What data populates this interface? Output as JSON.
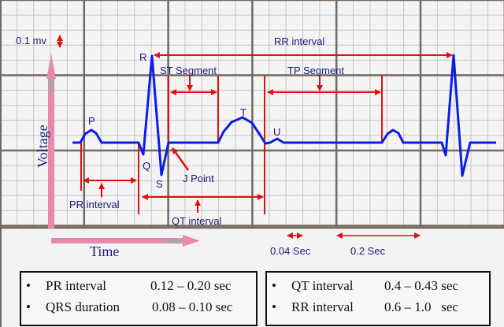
{
  "labels": {
    "voltage_scale": "0.1 mv",
    "voltage_axis": "Voltage",
    "time_axis": "Time",
    "wave_p": "P",
    "wave_q": "Q",
    "wave_r": "R",
    "wave_s": "S",
    "wave_t": "T",
    "wave_u": "U",
    "j_point": "J Point",
    "pr_interval": "PR interval",
    "qt_interval": "QT interval",
    "st_segment": "ST Segment",
    "tp_segment": "TP Segment",
    "rr_interval": "RR interval",
    "small_box_time": "0.04 Sec",
    "large_box_time": "0.2 Sec"
  },
  "normals": {
    "left": [
      {
        "bullet": "•",
        "name": "PR interval",
        "value": "0.12 – 0.20 sec"
      },
      {
        "bullet": "•",
        "name": "QRS duration",
        "value": "0.08 – 0.10 sec"
      }
    ],
    "right": [
      {
        "bullet": "•",
        "name": "QT interval",
        "value": "0.4 – 0.43 sec"
      },
      {
        "bullet": "•",
        "name": "RR interval",
        "value": "0.6 – 1.0   sec"
      }
    ]
  },
  "colors": {
    "trace": "#0a1ee6",
    "annotation": "#e01010",
    "axis_arrow": "#e88aaa",
    "text": "#1a1a7a",
    "grid_major": "#75695f",
    "grid_minor": "#c4c4c4"
  }
}
